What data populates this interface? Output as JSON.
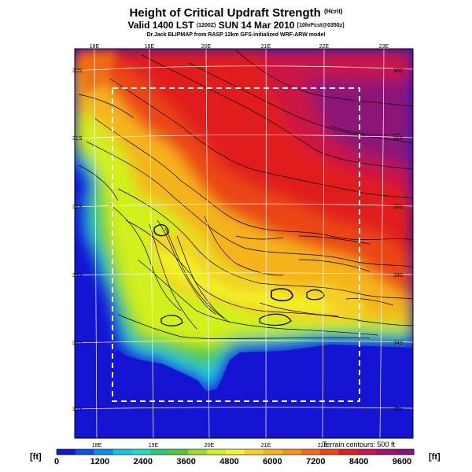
{
  "header": {
    "title": "Height of Critical Updraft Strength",
    "title_unit": "(Hcrit)",
    "valid_line": "Valid 1400 LST",
    "valid_utc": "(1200Z)",
    "valid_date": "SUN 14 Mar 2010",
    "valid_forecast": "[10hrFcst@0350z]",
    "credit": "Dr.Jack BLIPMAP from RASP 12km GFS-initialized WRF-ARW model"
  },
  "map": {
    "lon_labels_top": [
      "18E",
      "19E",
      "20E",
      "21E",
      "22E",
      "23E"
    ],
    "lon_labels_bottom": [
      "18E",
      "19E",
      "20E",
      "21E",
      "22E"
    ],
    "lat_labels_left": [
      "30S",
      "31S",
      "32S",
      "33S",
      "34S",
      "35S"
    ],
    "lat_labels_right": [
      "30S",
      "31S",
      "32S",
      "33S",
      "34S",
      "35S"
    ],
    "terrain_note": "Terrain contours: 500 ft"
  },
  "colorbar": {
    "unit_left": "[ft]",
    "unit_right": "[ft]",
    "tick_labels": [
      "0",
      "1200",
      "2400",
      "3600",
      "4800",
      "6000",
      "7200",
      "8400",
      "9600"
    ],
    "colors": [
      "#1414d2",
      "#0a50f0",
      "#0a8cf0",
      "#14c3e6",
      "#1edcbe",
      "#28c878",
      "#50c83c",
      "#96dc28",
      "#d2f01e",
      "#f5f028",
      "#f5d228",
      "#f5b41e",
      "#f59614",
      "#f06e14",
      "#eb4614",
      "#e11e1e",
      "#c81446",
      "#a0146e",
      "#8c1478"
    ]
  }
}
